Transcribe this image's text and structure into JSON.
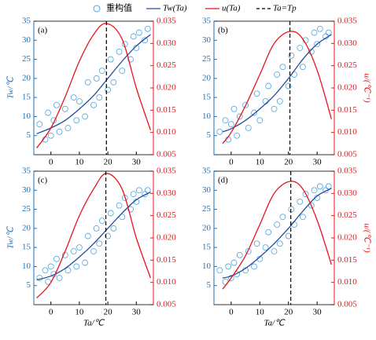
{
  "chart_data": [
    {
      "type": "scatter",
      "panel_label": "(a)",
      "ylabel": "Tw/℃",
      "xlim": [
        -6,
        36
      ],
      "xticks": [
        0,
        10,
        20,
        30
      ],
      "ylim": [
        0,
        35
      ],
      "yticks": [
        5,
        10,
        15,
        20,
        25,
        30,
        35
      ],
      "y2lim": [
        0.005,
        0.035
      ],
      "y2ticks": [
        {
          "value": 0.005,
          "label": "0.005"
        },
        {
          "value": 0.01,
          "label": "0.010"
        },
        {
          "value": 0.015,
          "label": "0.015"
        },
        {
          "value": 0.02,
          "label": "0.020"
        },
        {
          "value": 0.025,
          "label": "0.025"
        },
        {
          "value": 0.03,
          "label": "0.030"
        },
        {
          "value": 0.035,
          "label": "0.035"
        }
      ],
      "series": [
        {
          "name": "重构值",
          "kind": "scatter",
          "color": "#4ba3dc",
          "x": [
            -4,
            -2,
            -1,
            0,
            1,
            2,
            3,
            5,
            6,
            8,
            9,
            10,
            12,
            13,
            15,
            16,
            17,
            18,
            20,
            21,
            22,
            24,
            25,
            26,
            28,
            29,
            30,
            31,
            33,
            34
          ],
          "values": [
            8,
            4,
            11,
            5,
            9,
            13,
            6,
            12,
            7,
            15,
            9,
            14,
            10,
            19,
            13,
            20,
            15,
            22,
            17,
            25,
            19,
            27,
            22,
            29,
            25,
            31,
            28,
            32,
            30,
            33
          ]
        },
        {
          "name": "Tw(Ta)",
          "kind": "line",
          "color": "#1f4e9c",
          "x": [
            -5,
            0,
            5,
            10,
            15,
            20,
            25,
            30,
            35
          ],
          "values": [
            5.5,
            7,
            9,
            12,
            15.5,
            20,
            24.5,
            28.5,
            31.5
          ]
        },
        {
          "name": "u(Ta)",
          "kind": "line",
          "axis": "y2",
          "color": "#e8141b",
          "x": [
            -5,
            0,
            5,
            10,
            15,
            19.5,
            25,
            30,
            35
          ],
          "values": [
            0.0065,
            0.011,
            0.018,
            0.026,
            0.032,
            0.0345,
            0.031,
            0.02,
            0.0105
          ]
        },
        {
          "name": "Ta=Tp",
          "kind": "vline",
          "color": "#000000",
          "x": [
            19.5
          ]
        }
      ]
    },
    {
      "type": "scatter",
      "panel_label": "(b)",
      "y2label": "u/(℃⁻¹)",
      "xlim": [
        -6,
        36
      ],
      "xticks": [
        0,
        10,
        20,
        30
      ],
      "ylim": [
        0,
        35
      ],
      "yticks": [
        5,
        10,
        15,
        20,
        25,
        30,
        35
      ],
      "y2lim": [
        0.005,
        0.035
      ],
      "y2ticks": [
        {
          "value": 0.005,
          "label": "0.005"
        },
        {
          "value": 0.01,
          "label": "0.010"
        },
        {
          "value": 0.015,
          "label": "0.015"
        },
        {
          "value": 0.02,
          "label": "0.020"
        },
        {
          "value": 0.025,
          "label": "0.025"
        },
        {
          "value": 0.03,
          "label": "0.030"
        },
        {
          "value": 0.035,
          "label": "0.035"
        }
      ],
      "series": [
        {
          "kind": "scatter",
          "color": "#4ba3dc",
          "x": [
            -4,
            -2,
            -1,
            0,
            1,
            2,
            3,
            5,
            6,
            8,
            9,
            10,
            12,
            13,
            15,
            16,
            17,
            18,
            20,
            21,
            22,
            24,
            25,
            26,
            28,
            29,
            30,
            31,
            33,
            34
          ],
          "values": [
            6,
            9,
            4,
            8,
            12,
            5,
            10,
            13,
            7,
            11,
            16,
            9,
            14,
            18,
            12,
            21,
            14,
            23,
            18,
            26,
            21,
            28,
            23,
            30,
            27,
            32,
            29,
            33,
            31,
            32
          ]
        },
        {
          "kind": "line",
          "color": "#1f4e9c",
          "x": [
            -3,
            0,
            5,
            10,
            15,
            20,
            25,
            30,
            35
          ],
          "values": [
            6,
            6.8,
            9,
            12,
            15.5,
            20,
            25,
            29,
            31.5
          ]
        },
        {
          "kind": "line",
          "axis": "y2",
          "color": "#e8141b",
          "x": [
            -3,
            0,
            5,
            10,
            15,
            20.5,
            25,
            30,
            35
          ],
          "values": [
            0.0075,
            0.01,
            0.016,
            0.023,
            0.03,
            0.0327,
            0.031,
            0.024,
            0.013
          ]
        },
        {
          "kind": "vline",
          "color": "#000000",
          "x": [
            20.5
          ]
        }
      ]
    },
    {
      "type": "scatter",
      "panel_label": "(c)",
      "ylabel": "Tw/℃",
      "xlabel": "Ta/℃",
      "xlim": [
        -6,
        36
      ],
      "xticks": [
        0,
        10,
        20,
        30
      ],
      "ylim": [
        0,
        35
      ],
      "yticks": [
        5,
        10,
        15,
        20,
        25,
        30,
        35
      ],
      "y2lim": [
        0.005,
        0.035
      ],
      "y2ticks": [
        {
          "value": 0.005,
          "label": "0.005"
        },
        {
          "value": 0.01,
          "label": "0.010"
        },
        {
          "value": 0.015,
          "label": "0.015"
        },
        {
          "value": 0.02,
          "label": "0.020"
        },
        {
          "value": 0.025,
          "label": "0.025"
        },
        {
          "value": 0.03,
          "label": "0.030"
        },
        {
          "value": 0.035,
          "label": "0.035"
        }
      ],
      "series": [
        {
          "kind": "scatter",
          "color": "#4ba3dc",
          "x": [
            -4,
            -2,
            -1,
            0,
            1,
            2,
            3,
            5,
            6,
            8,
            9,
            10,
            12,
            13,
            15,
            16,
            17,
            18,
            20,
            21,
            22,
            24,
            25,
            26,
            28,
            29,
            30,
            31,
            33,
            34
          ],
          "values": [
            7,
            9,
            6,
            10,
            8,
            12,
            7,
            13,
            9,
            14,
            10,
            15,
            11,
            18,
            14,
            20,
            16,
            22,
            18,
            24,
            20,
            26,
            23,
            28,
            25,
            29,
            27,
            30,
            29,
            30
          ]
        },
        {
          "kind": "line",
          "color": "#1f4e9c",
          "x": [
            -5,
            0,
            5,
            10,
            15,
            20,
            25,
            30,
            35
          ],
          "values": [
            6.5,
            7.5,
            9.5,
            12.5,
            16,
            20,
            24,
            27.5,
            29.5
          ]
        },
        {
          "kind": "line",
          "axis": "y2",
          "color": "#e8141b",
          "x": [
            -5,
            0,
            5,
            10,
            15,
            19.5,
            25,
            30,
            35
          ],
          "values": [
            0.0065,
            0.01,
            0.017,
            0.025,
            0.031,
            0.0345,
            0.031,
            0.02,
            0.011
          ]
        },
        {
          "kind": "vline",
          "color": "#000000",
          "x": [
            19.3
          ]
        }
      ]
    },
    {
      "type": "scatter",
      "panel_label": "(d)",
      "xlabel": "Ta/℃",
      "y2label": "u/(℃⁻¹)",
      "xlim": [
        -6,
        36
      ],
      "xticks": [
        0,
        10,
        20,
        30
      ],
      "ylim": [
        0,
        35
      ],
      "yticks": [
        5,
        10,
        15,
        20,
        25,
        30,
        35
      ],
      "y2lim": [
        0.005,
        0.035
      ],
      "y2ticks": [
        {
          "value": 0.005,
          "label": "0.005"
        },
        {
          "value": 0.01,
          "label": "0.010"
        },
        {
          "value": 0.015,
          "label": "0.015"
        },
        {
          "value": 0.02,
          "label": "0.020"
        },
        {
          "value": 0.025,
          "label": "0.025"
        },
        {
          "value": 0.03,
          "label": "0.030"
        },
        {
          "value": 0.035,
          "label": "0.035"
        }
      ],
      "series": [
        {
          "kind": "scatter",
          "color": "#4ba3dc",
          "x": [
            -4,
            -2,
            -1,
            0,
            1,
            2,
            3,
            5,
            6,
            8,
            9,
            10,
            12,
            13,
            15,
            16,
            17,
            18,
            20,
            21,
            22,
            24,
            25,
            26,
            28,
            29,
            30,
            31,
            33,
            34
          ],
          "values": [
            9,
            6,
            10,
            7,
            11,
            8,
            13,
            9,
            14,
            10,
            16,
            12,
            15,
            19,
            14,
            21,
            16,
            23,
            18,
            25,
            21,
            27,
            23,
            29,
            26,
            30,
            28,
            31,
            30,
            31
          ]
        },
        {
          "kind": "line",
          "color": "#1f4e9c",
          "x": [
            -3,
            0,
            5,
            10,
            15,
            20,
            25,
            30,
            35
          ],
          "values": [
            7,
            7.5,
            9.5,
            12.5,
            16,
            20,
            24.5,
            28.5,
            30.5
          ]
        },
        {
          "kind": "line",
          "axis": "y2",
          "color": "#e8141b",
          "x": [
            -3,
            0,
            5,
            10,
            15,
            20.5,
            25,
            30,
            35
          ],
          "values": [
            0.0085,
            0.011,
            0.016,
            0.023,
            0.03,
            0.0327,
            0.031,
            0.024,
            0.014
          ]
        },
        {
          "kind": "vline",
          "color": "#000000",
          "x": [
            20.8
          ]
        }
      ]
    }
  ]
}
